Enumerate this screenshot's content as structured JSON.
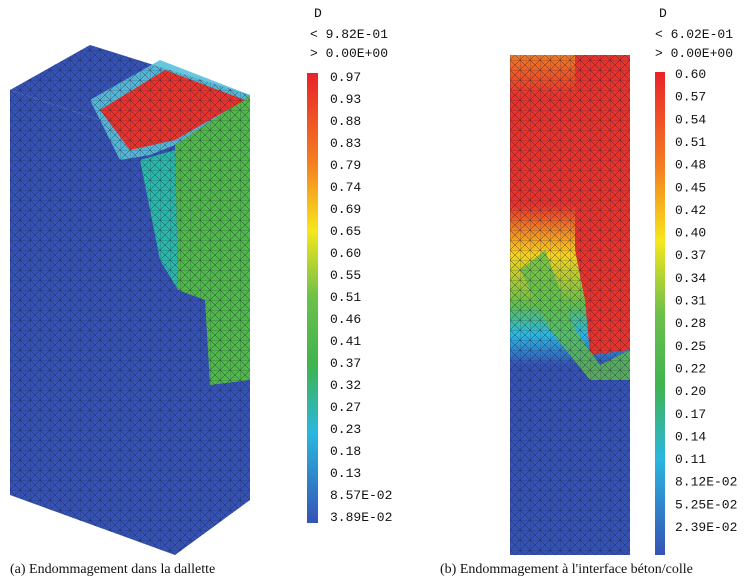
{
  "panels": [
    {
      "legend_title": "D",
      "max_label": "< 9.82E-01",
      "min_label": "> 0.00E+00",
      "scale_labels": [
        "0.97",
        "0.93",
        "0.88",
        "0.83",
        "0.79",
        "0.74",
        "0.69",
        "0.65",
        "0.60",
        "0.55",
        "0.51",
        "0.46",
        "0.41",
        "0.37",
        "0.32",
        "0.27",
        "0.23",
        "0.18",
        "0.13",
        "8.57E-02",
        "3.89E-02"
      ],
      "caption": "(a) Endommagement dans la dallette"
    },
    {
      "legend_title": "D",
      "max_label": "< 6.02E-01",
      "min_label": "> 0.00E+00",
      "scale_labels": [
        "0.60",
        "0.57",
        "0.54",
        "0.51",
        "0.48",
        "0.45",
        "0.42",
        "0.40",
        "0.37",
        "0.34",
        "0.31",
        "0.28",
        "0.25",
        "0.22",
        "0.20",
        "0.17",
        "0.14",
        "0.11",
        "8.12E-02",
        "5.25E-02",
        "2.39E-02"
      ],
      "caption": "(b) Endommagement à l'interface béton/colle"
    }
  ]
}
